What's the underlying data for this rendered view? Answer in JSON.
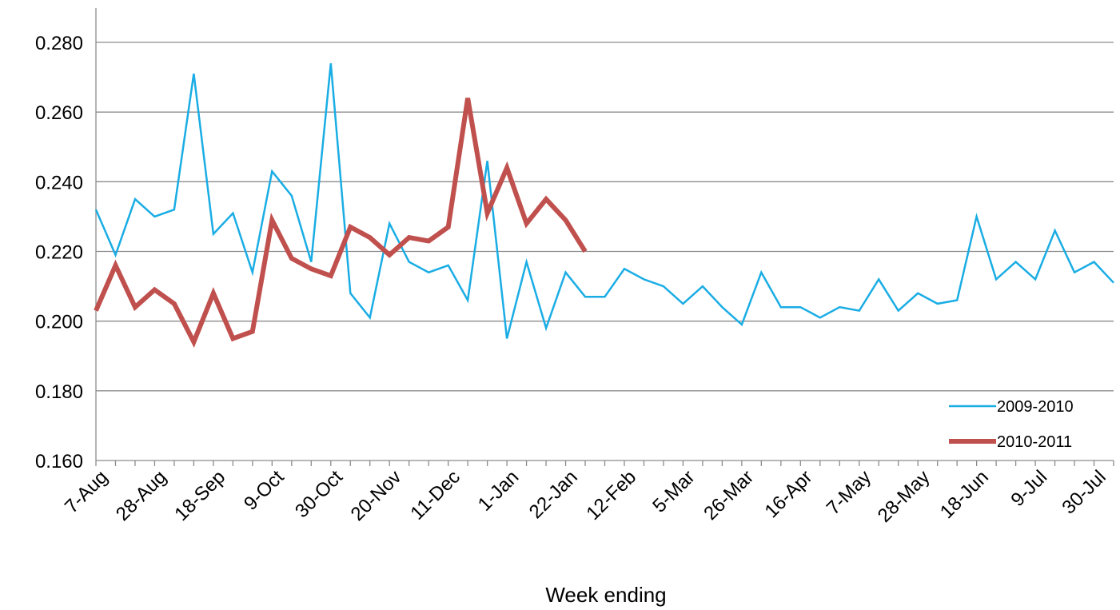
{
  "chart_data": {
    "type": "line",
    "title": "",
    "xlabel": "Week ending",
    "ylabel": "",
    "ylim": [
      0.16,
      0.28
    ],
    "yticks": [
      "0.160",
      "0.180",
      "0.200",
      "0.220",
      "0.240",
      "0.260",
      "0.280"
    ],
    "grid": "horizontal",
    "legend": "bottom-right",
    "x_tick_labels": [
      "7-Aug",
      "28-Aug",
      "18-Sep",
      "9-Oct",
      "30-Oct",
      "20-Nov",
      "11-Dec",
      "1-Jan",
      "22-Jan",
      "12-Feb",
      "5-Mar",
      "26-Mar",
      "16-Apr",
      "7-May",
      "28-May",
      "18-Jun",
      "9-Jul",
      "30-Jul"
    ],
    "x_weeks": 53,
    "series": [
      {
        "name": "2009-2010",
        "color": "#1AADE4",
        "values": [
          0.232,
          0.219,
          0.235,
          0.23,
          0.232,
          0.271,
          0.225,
          0.231,
          0.214,
          0.243,
          0.236,
          0.217,
          0.274,
          0.208,
          0.201,
          0.228,
          0.217,
          0.214,
          0.216,
          0.206,
          0.246,
          0.195,
          0.217,
          0.198,
          0.214,
          0.207,
          0.207,
          0.215,
          0.212,
          0.21,
          0.205,
          0.21,
          0.204,
          0.199,
          0.214,
          0.204,
          0.204,
          0.201,
          0.204,
          0.203,
          0.212,
          0.203,
          0.208,
          0.205,
          0.206,
          0.23,
          0.212,
          0.217,
          0.212,
          0.226,
          0.214,
          0.217,
          0.211
        ]
      },
      {
        "name": "2010-2011",
        "color": "#C0504D",
        "values": [
          0.203,
          0.216,
          0.204,
          0.209,
          0.205,
          0.194,
          0.208,
          0.195,
          0.197,
          0.229,
          0.218,
          0.215,
          0.213,
          0.227,
          0.224,
          0.219,
          0.224,
          0.223,
          0.227,
          0.264,
          0.231,
          0.244,
          0.228,
          0.235,
          0.229,
          0.22
        ]
      }
    ]
  }
}
